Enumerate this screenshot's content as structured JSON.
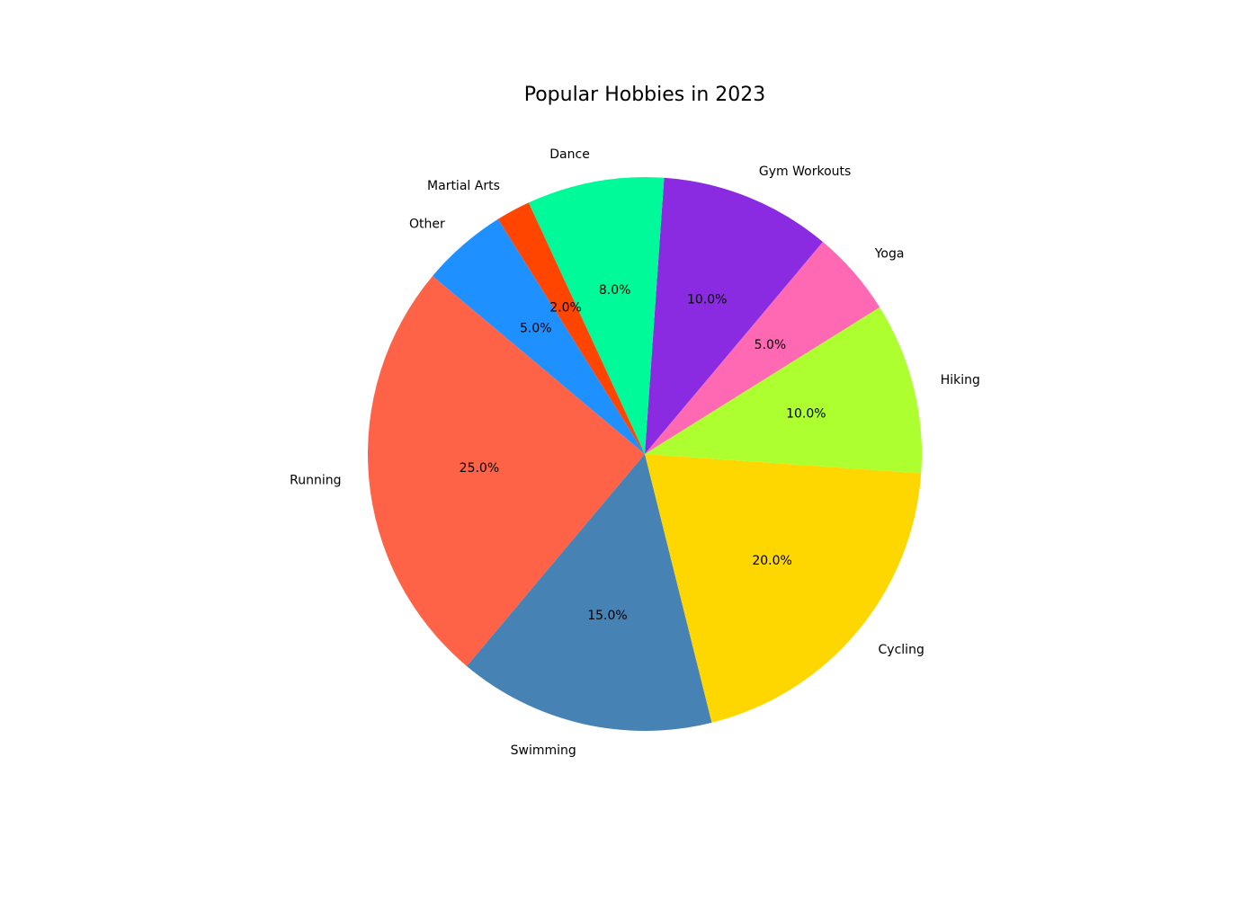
{
  "chart_data": {
    "type": "pie",
    "title": "Popular Hobbies in 2023",
    "start_angle_deg": 140,
    "direction": "counterclockwise",
    "slices": [
      {
        "label": "Running",
        "value": 25,
        "pct_label": "25.0%",
        "color": "#FF6347"
      },
      {
        "label": "Swimming",
        "value": 15,
        "pct_label": "15.0%",
        "color": "#4682B4"
      },
      {
        "label": "Cycling",
        "value": 20,
        "pct_label": "20.0%",
        "color": "#FFD700"
      },
      {
        "label": "Hiking",
        "value": 10,
        "pct_label": "10.0%",
        "color": "#ADFF2F"
      },
      {
        "label": "Yoga",
        "value": 5,
        "pct_label": "5.0%",
        "color": "#FF69B4"
      },
      {
        "label": "Gym Workouts",
        "value": 10,
        "pct_label": "10.0%",
        "color": "#8A2BE2"
      },
      {
        "label": "Dance",
        "value": 8,
        "pct_label": "8.0%",
        "color": "#00FA9A"
      },
      {
        "label": "Martial Arts",
        "value": 2,
        "pct_label": "2.0%",
        "color": "#FF4500"
      },
      {
        "label": "Other",
        "value": 5,
        "pct_label": "5.0%",
        "color": "#1E90FF"
      }
    ]
  }
}
